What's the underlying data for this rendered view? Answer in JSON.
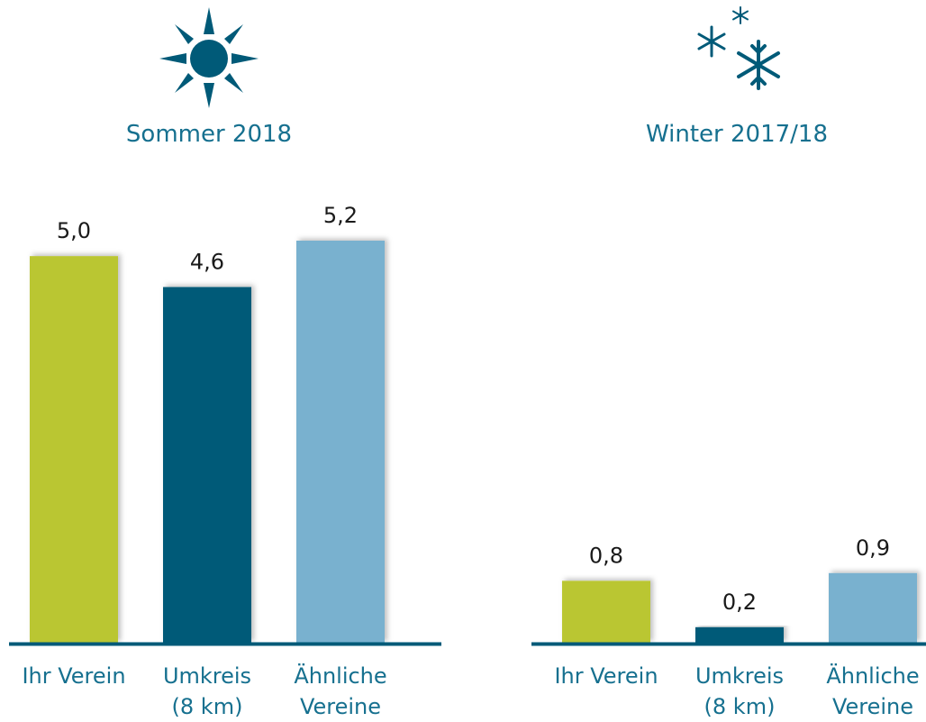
{
  "chart_data": [
    {
      "type": "bar",
      "title": "Sommer 2018",
      "categories": [
        "Ihr Verein",
        "Umkreis\n(8 km)",
        "Ähnliche\nVereine"
      ],
      "values": [
        5.0,
        4.6,
        5.2
      ],
      "value_labels": [
        "5,0",
        "4,6",
        "5,2"
      ],
      "colors": [
        "#bac630",
        "#005a78",
        "#79b1cf"
      ]
    },
    {
      "type": "bar",
      "title": "Winter 2017/18",
      "categories": [
        "Ihr Verein",
        "Umkreis\n(8 km)",
        "Ähnliche\nVereine"
      ],
      "values": [
        0.8,
        0.2,
        0.9
      ],
      "value_labels": [
        "0,8",
        "0,2",
        "0,9"
      ],
      "colors": [
        "#bac630",
        "#005a78",
        "#79b1cf"
      ]
    }
  ]
}
